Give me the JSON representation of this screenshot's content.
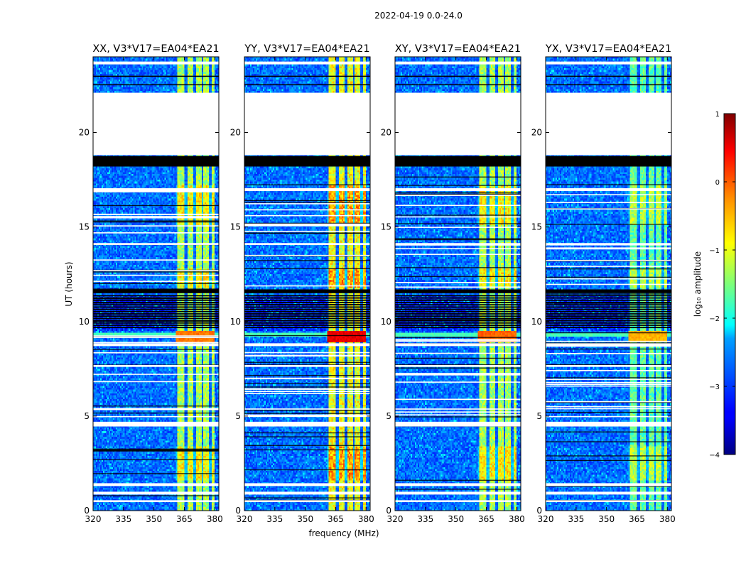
{
  "chart_data": {
    "type": "heatmap",
    "suptitle": "2022-04-19 0.0-24.0",
    "xlabel": "frequency (MHz)",
    "ylabel": "UT (hours)",
    "xlim": [
      320,
      382
    ],
    "ylim": [
      0,
      24
    ],
    "xticks": [
      320,
      335,
      350,
      365,
      380
    ],
    "yticks": [
      0,
      5,
      10,
      15,
      20
    ],
    "panels": [
      {
        "title": "XX, V3*V17=EA04*EA21",
        "pol": "XX",
        "rfi_level": 0.72,
        "bright_rfi": 0.78
      },
      {
        "title": "YY, V3*V17=EA04*EA21",
        "pol": "YY",
        "rfi_level": 0.82,
        "bright_rfi": 0.92
      },
      {
        "title": "XY, V3*V17=EA04*EA21",
        "pol": "XY",
        "rfi_level": 0.72,
        "bright_rfi": 0.8
      },
      {
        "title": "YX, V3*V17=EA04*EA21",
        "pol": "YX",
        "rfi_level": 0.62,
        "bright_rfi": 0.72
      }
    ],
    "rfi_band_mhz": [
      361,
      380
    ],
    "rfi_channel_edges_mhz": [
      361,
      366,
      370,
      374,
      378
    ],
    "flagged_white_hours": [
      [
        18.8,
        22.1
      ],
      [
        23.6,
        23.75
      ],
      [
        16.9,
        17.05
      ],
      [
        14.05,
        14.15
      ],
      [
        8.7,
        8.85
      ],
      [
        7.6,
        7.7
      ],
      [
        4.45,
        4.7
      ],
      [
        1.3,
        1.45
      ],
      [
        0.85,
        1.0
      ],
      [
        0.45,
        0.55
      ]
    ],
    "flagged_black_hours": [
      [
        18.2,
        18.75
      ],
      [
        11.5,
        11.7
      ],
      [
        9.7,
        11.4
      ]
    ],
    "colorbar": {
      "label": "log₁₀ amplitude",
      "range": [
        -4,
        1
      ],
      "ticks": [
        "1",
        "0",
        "−1",
        "−2",
        "−3",
        "−4"
      ],
      "colormap": "jet"
    }
  }
}
